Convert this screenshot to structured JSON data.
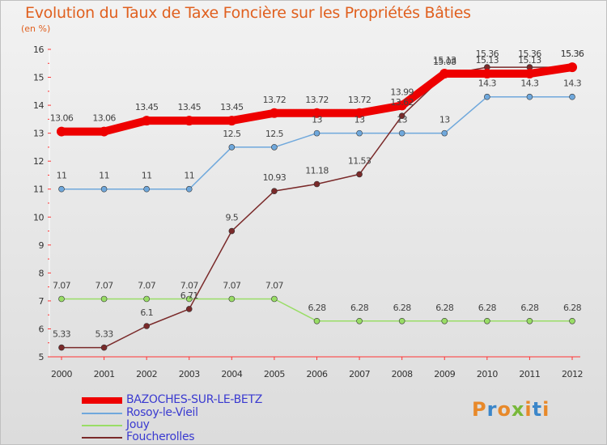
{
  "chart_data": {
    "type": "line",
    "title": "Evolution du Taux de Taxe Foncière sur les Propriétés Bâties",
    "subtitle": "(en %)",
    "categories": [
      "2000",
      "2001",
      "2002",
      "2003",
      "2004",
      "2005",
      "2006",
      "2007",
      "2008",
      "2009",
      "2010",
      "2011",
      "2012"
    ],
    "ylim": [
      5,
      16
    ],
    "yticks": [
      "5",
      "6",
      "7",
      "8",
      "9",
      "10",
      "11",
      "12",
      "13",
      "14",
      "15",
      "16"
    ],
    "grid": false,
    "legend_position": "bottom-left",
    "series": [
      {
        "name": "BAZOCHES-SUR-LE-BETZ",
        "color": "#ee0000",
        "values": [
          13.06,
          13.06,
          13.45,
          13.45,
          13.45,
          13.72,
          13.72,
          13.72,
          13.99,
          15.13,
          15.13,
          15.13,
          15.36
        ],
        "labels": [
          "13.06",
          "13.06",
          "13.45",
          "13.45",
          "13.45",
          "13.72",
          "13.72",
          "13.72",
          "13.99",
          "15.13",
          "15.13",
          "15.13",
          "15.36"
        ]
      },
      {
        "name": "Rosoy-le-Vieil",
        "color": "#6fa8dc",
        "values": [
          11,
          11,
          11,
          11,
          12.5,
          12.5,
          13,
          13,
          13,
          13,
          14.3,
          14.3,
          14.3
        ],
        "labels": [
          "11",
          "11",
          "11",
          "11",
          "12.5",
          "12.5",
          "13",
          "13",
          "13",
          "13",
          "14.3",
          "14.3",
          "14.3"
        ]
      },
      {
        "name": "Jouy",
        "color": "#99dd66",
        "values": [
          7.07,
          7.07,
          7.07,
          7.07,
          7.07,
          7.07,
          6.28,
          6.28,
          6.28,
          6.28,
          6.28,
          6.28,
          6.28
        ],
        "labels": [
          "7.07",
          "7.07",
          "7.07",
          "7.07",
          "7.07",
          "7.07",
          "6.28",
          "6.28",
          "6.28",
          "6.28",
          "6.28",
          "6.28",
          "6.28"
        ]
      },
      {
        "name": "Foucherolles",
        "color": "#7a2a2a",
        "values": [
          5.33,
          5.33,
          6.1,
          6.71,
          9.5,
          10.93,
          11.18,
          11.53,
          13.62,
          15.08,
          15.36,
          15.36,
          15.36
        ],
        "labels": [
          "5.33",
          "5.33",
          "6.1",
          "6.71",
          "9.5",
          "10.93",
          "11.18",
          "11.53",
          "13.62",
          "15.08",
          "15.36",
          "15.36",
          "15.36"
        ]
      }
    ]
  },
  "logo": {
    "text": "Proxiti"
  }
}
